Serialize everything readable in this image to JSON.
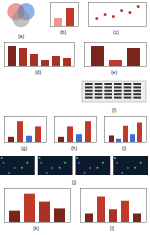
{
  "chart_data": [
    {
      "type": "venn",
      "title": "(a)",
      "colors": [
        "#e74c3c",
        "#3b6fd6",
        "#8e8e8e"
      ]
    },
    {
      "type": "bar",
      "title": "(b)",
      "categories": [
        null,
        null
      ],
      "values": [
        2.0,
        4.5
      ],
      "colors": [
        "#f1948a",
        "#c0392b"
      ],
      "ylim": [
        0,
        6
      ],
      "tick_labels": false
    },
    {
      "type": "scatter",
      "title": "(c)",
      "x": [
        1,
        2,
        3,
        4,
        5,
        6
      ],
      "values": [
        2,
        3,
        2.5,
        4,
        3.5,
        5
      ],
      "color": "#c0392b",
      "xlim": [
        0,
        7
      ],
      "ylim": [
        0,
        6
      ],
      "tick_labels": false
    },
    {
      "type": "bar",
      "title": "(d)",
      "categories": [
        null,
        null,
        null,
        null,
        null,
        null
      ],
      "values": [
        1.0,
        0.9,
        0.6,
        0.3,
        0.5,
        0.4
      ],
      "colors": [
        "#7b241c",
        "#a93226",
        "#a93226",
        "#a93226",
        "#a93226",
        "#a93226"
      ],
      "ylim": [
        0,
        1.2
      ],
      "tick_labels": false
    },
    {
      "type": "bar",
      "title": "(e)",
      "categories": [
        null,
        null,
        null
      ],
      "values": [
        1.0,
        0.3,
        0.9
      ],
      "colors": [
        "#7b241c",
        "#c0392b",
        "#7b241c"
      ],
      "ylim": [
        0,
        1.2
      ],
      "tick_labels": false
    },
    {
      "type": "blot",
      "title": "(f)"
    },
    {
      "type": "bar",
      "title": "(g)",
      "categories": [
        null,
        null,
        null,
        null
      ],
      "values": [
        1.0,
        4.0,
        1.2,
        3.0
      ],
      "colors": [
        "#7b241c",
        "#c0392b",
        "#3b6fd6",
        "#c0392b"
      ],
      "ylim": [
        0,
        5
      ],
      "tick_labels": false
    },
    {
      "type": "bar",
      "title": "(h)",
      "categories": [
        null,
        null,
        null,
        null
      ],
      "values": [
        1.0,
        3.0,
        1.5,
        4.0
      ],
      "colors": [
        "#7b241c",
        "#c0392b",
        "#3b6fd6",
        "#c0392b"
      ],
      "ylim": [
        0,
        5
      ],
      "tick_labels": false
    },
    {
      "type": "bar",
      "title": "(i)",
      "categories": [
        null,
        null,
        null,
        null,
        null
      ],
      "values": [
        1.0,
        0.5,
        2.5,
        1.2,
        3.0
      ],
      "colors": [
        "#7b241c",
        "#3b6fd6",
        "#c0392b",
        "#3b6fd6",
        "#c0392b"
      ],
      "ylim": [
        0,
        4
      ],
      "tick_labels": false
    },
    {
      "type": "micrograph",
      "title": "(j)"
    },
    {
      "type": "bar",
      "title": "(k)",
      "categories": [
        null,
        null,
        null,
        null
      ],
      "values": [
        1.0,
        2.5,
        1.8,
        1.2
      ],
      "colors": [
        "#7b241c",
        "#c0392b",
        "#a93226",
        "#7b241c"
      ],
      "ylim": [
        0,
        3
      ],
      "tick_labels": false
    },
    {
      "type": "bar",
      "title": "(l)",
      "categories": [
        null,
        null,
        null,
        null,
        null
      ],
      "values": [
        1.0,
        3.0,
        1.5,
        2.5,
        1.0
      ],
      "colors": [
        "#7b241c",
        "#c0392b",
        "#a93226",
        "#c0392b",
        "#7b241c"
      ],
      "ylim": [
        0,
        4
      ],
      "tick_labels": false
    }
  ]
}
